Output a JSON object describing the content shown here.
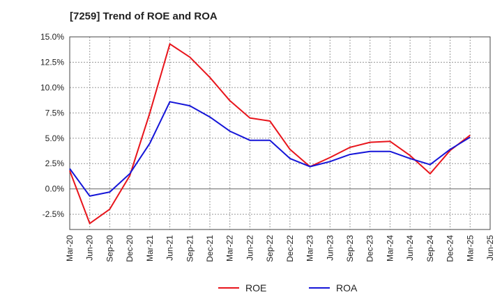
{
  "chart_data": {
    "type": "line",
    "title": "[7259]  Trend of ROE and ROA",
    "xlabel": "",
    "ylabel": "",
    "categories": [
      "Mar-20",
      "Jun-20",
      "Sep-20",
      "Dec-20",
      "Mar-21",
      "Jun-21",
      "Sep-21",
      "Dec-21",
      "Mar-22",
      "Jun-22",
      "Sep-22",
      "Dec-22",
      "Mar-23",
      "Jun-23",
      "Sep-23",
      "Dec-23",
      "Mar-24",
      "Jun-24",
      "Sep-24",
      "Dec-24",
      "Mar-25",
      "Jun-25"
    ],
    "ylim": [
      -4.0,
      15.0
    ],
    "yticks": [
      15.0,
      12.5,
      10.0,
      7.5,
      5.0,
      2.5,
      0.0,
      -2.5
    ],
    "ytick_labels": [
      "15.0%",
      "12.5%",
      "10.0%",
      "7.5%",
      "5.0%",
      "2.5%",
      "0.0%",
      "-2.5%"
    ],
    "grid": true,
    "legend_position": "bottom-center",
    "series": [
      {
        "name": "ROE",
        "color": "#e8141b",
        "values": [
          1.8,
          -3.4,
          -2.0,
          1.3,
          7.5,
          14.3,
          13.0,
          11.0,
          8.7,
          7.0,
          6.7,
          3.9,
          2.2,
          3.1,
          4.1,
          4.6,
          4.7,
          3.3,
          1.5,
          3.8,
          5.3,
          null
        ]
      },
      {
        "name": "ROA",
        "color": "#1515d8",
        "values": [
          2.0,
          -0.7,
          -0.3,
          1.5,
          4.5,
          8.6,
          8.2,
          7.1,
          5.7,
          4.8,
          4.8,
          3.0,
          2.2,
          2.7,
          3.4,
          3.7,
          3.7,
          3.0,
          2.4,
          3.9,
          5.1,
          null
        ]
      }
    ]
  }
}
